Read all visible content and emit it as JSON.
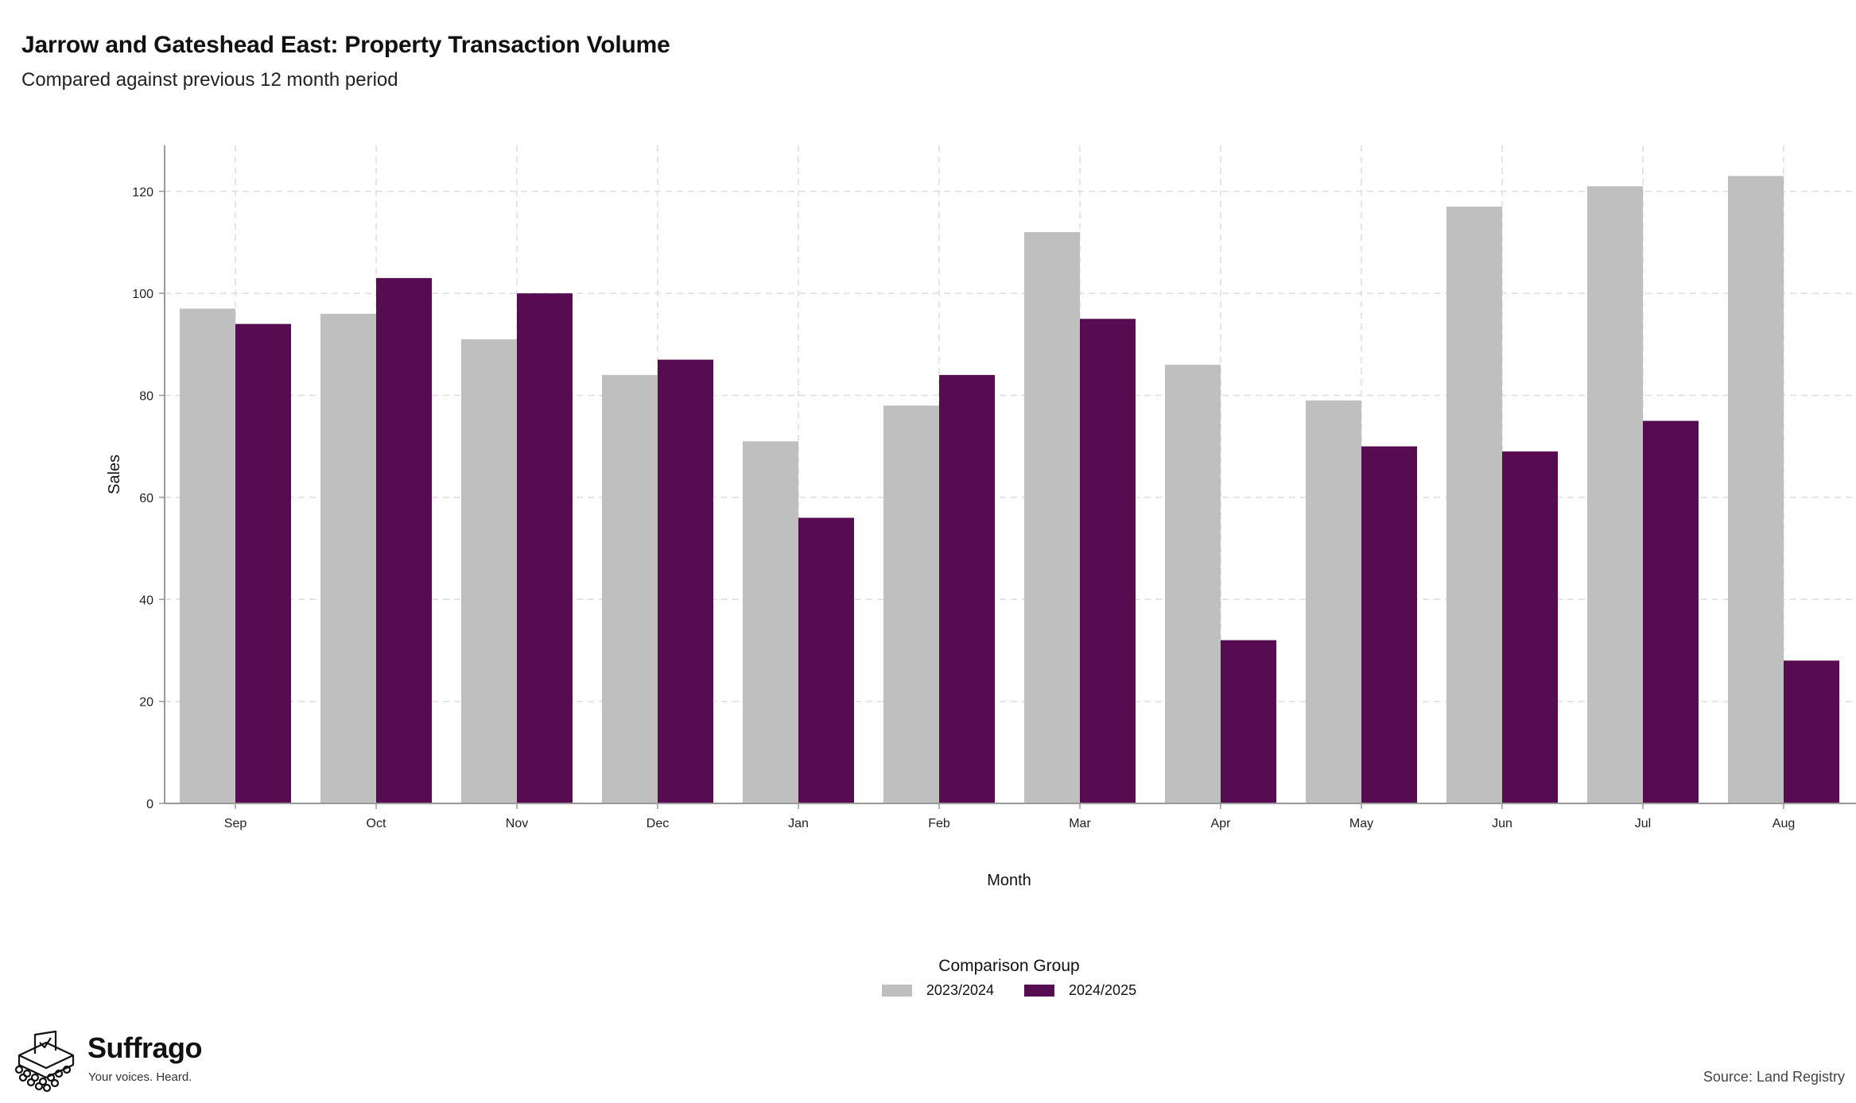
{
  "title": "Jarrow and Gateshead East: Property Transaction Volume",
  "subtitle": "Compared against previous 12 month period",
  "source": "Source: Land Registry",
  "brand": {
    "name": "Suffrago",
    "tagline": "Your voices. Heard."
  },
  "legend": {
    "title": "Comparison Group",
    "items": [
      "2023/2024",
      "2024/2025"
    ]
  },
  "colors": {
    "2023/2024": "#bfbfbf",
    "2024/2025": "#570c52",
    "grid": "#dedede",
    "axis": "#999999"
  },
  "chart_data": {
    "type": "bar",
    "title": "Jarrow and Gateshead East: Property Transaction Volume",
    "subtitle": "Compared against previous 12 month period",
    "xlabel": "Month",
    "ylabel": "Sales",
    "categories": [
      "Sep",
      "Oct",
      "Nov",
      "Dec",
      "Jan",
      "Feb",
      "Mar",
      "Apr",
      "May",
      "Jun",
      "Jul",
      "Aug"
    ],
    "series": [
      {
        "name": "2023/2024",
        "values": [
          97,
          96,
          91,
          84,
          71,
          78,
          112,
          86,
          79,
          117,
          121,
          123
        ]
      },
      {
        "name": "2024/2025",
        "values": [
          94,
          103,
          100,
          87,
          56,
          84,
          95,
          32,
          70,
          69,
          75,
          28
        ]
      }
    ],
    "ylim": [
      0,
      129
    ],
    "yticks": [
      0,
      20,
      40,
      60,
      80,
      100,
      120
    ],
    "grid": true,
    "legend_position": "bottom"
  }
}
